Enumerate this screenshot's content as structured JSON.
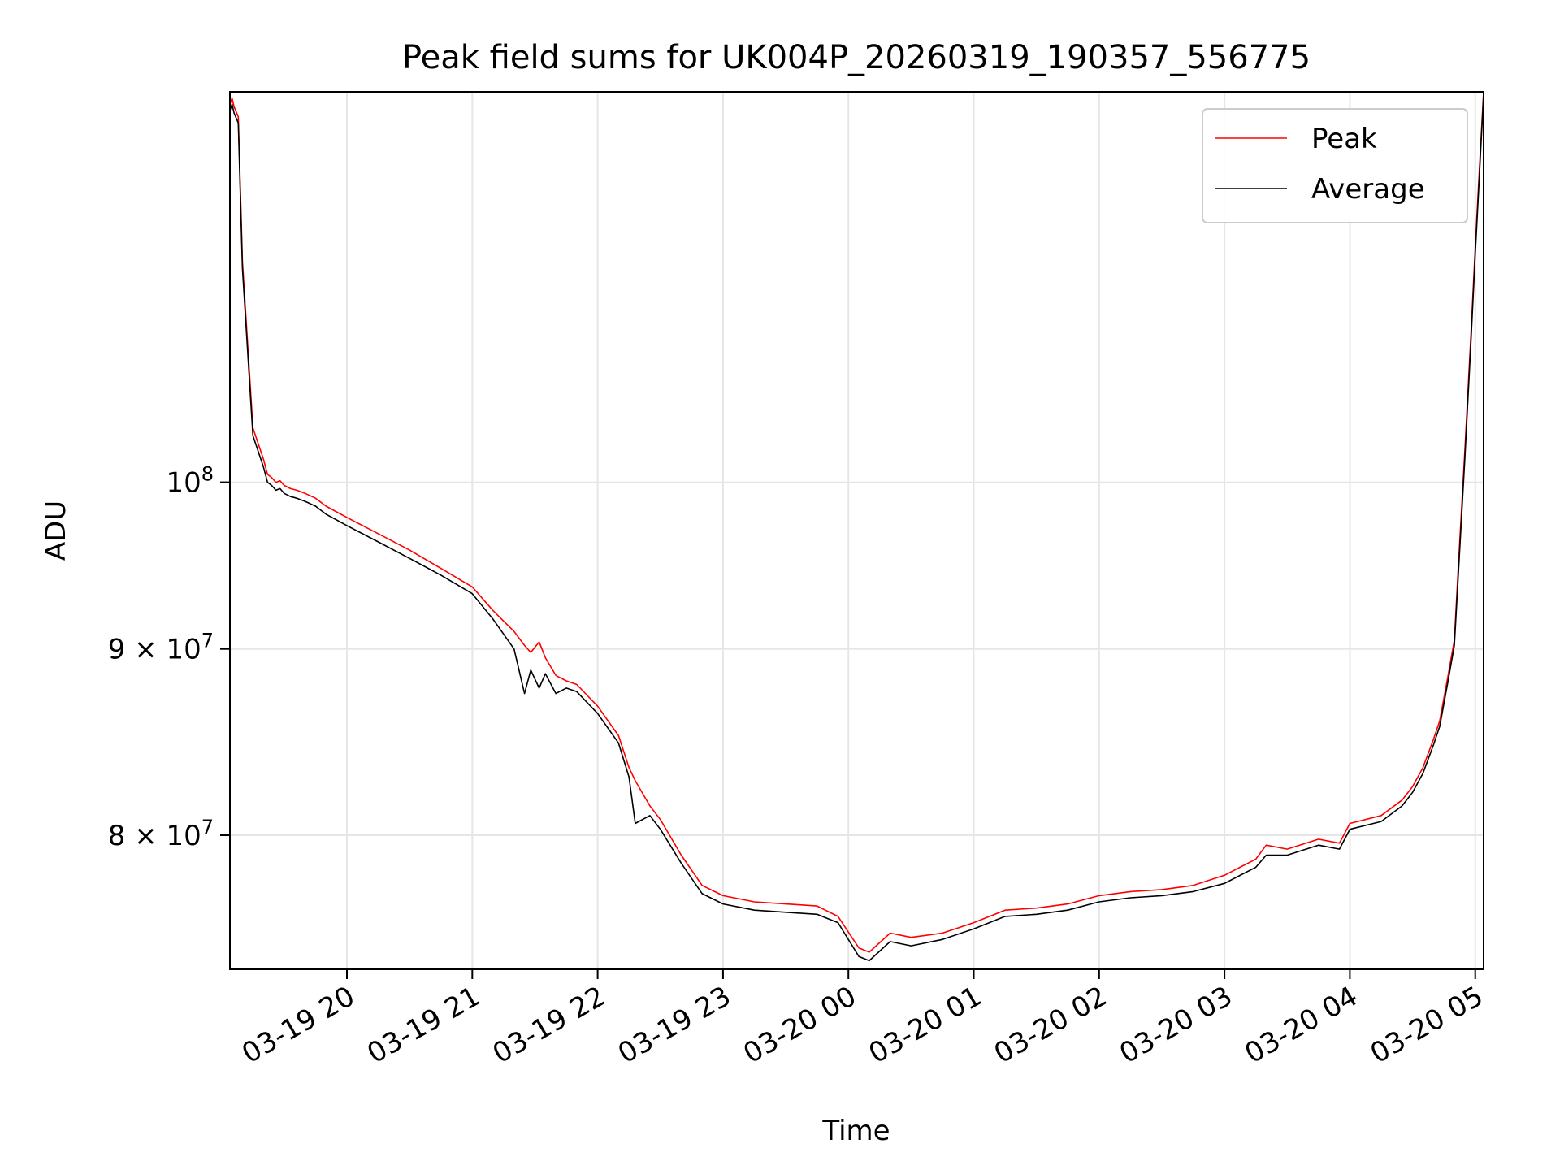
{
  "chart_data": {
    "type": "line",
    "title": "Peak field sums for UK004P_20260319_190357_556775",
    "xlabel": "Time",
    "ylabel": "ADU",
    "y_scale": "log",
    "ylim": [
      73500000,
      128000000
    ],
    "xlim": [
      "2026-03-19 19:04:00",
      "2026-03-20 05:04:00"
    ],
    "grid": true,
    "legend_position": "top-right",
    "x_ticks": [
      {
        "t": "2026-03-19 20:00",
        "label": "03-19 20"
      },
      {
        "t": "2026-03-19 21:00",
        "label": "03-19 21"
      },
      {
        "t": "2026-03-19 22:00",
        "label": "03-19 22"
      },
      {
        "t": "2026-03-19 23:00",
        "label": "03-19 23"
      },
      {
        "t": "2026-03-20 00:00",
        "label": "03-20 00"
      },
      {
        "t": "2026-03-20 01:00",
        "label": "03-20 01"
      },
      {
        "t": "2026-03-20 02:00",
        "label": "03-20 02"
      },
      {
        "t": "2026-03-20 03:00",
        "label": "03-20 03"
      },
      {
        "t": "2026-03-20 04:00",
        "label": "03-20 04"
      },
      {
        "t": "2026-03-20 05:00",
        "label": "03-20 05"
      }
    ],
    "y_ticks": [
      {
        "value": 100000000,
        "base": "10",
        "exp": "8"
      },
      {
        "value": 90000000,
        "base": "9 × 10",
        "exp": "7"
      },
      {
        "value": 80000000,
        "base": "8 × 10",
        "exp": "7"
      }
    ],
    "series": [
      {
        "name": "Peak",
        "color": "#ff0000",
        "x": [
          "2026-03-19 19:04",
          "2026-03-19 19:05",
          "2026-03-19 19:06",
          "2026-03-19 19:08",
          "2026-03-19 19:10",
          "2026-03-19 19:15",
          "2026-03-19 19:20",
          "2026-03-19 19:22",
          "2026-03-19 19:24",
          "2026-03-19 19:26",
          "2026-03-19 19:28",
          "2026-03-19 19:30",
          "2026-03-19 19:33",
          "2026-03-19 19:36",
          "2026-03-19 19:40",
          "2026-03-19 19:45",
          "2026-03-19 19:50",
          "2026-03-19 20:00",
          "2026-03-19 20:15",
          "2026-03-19 20:30",
          "2026-03-19 20:45",
          "2026-03-19 21:00",
          "2026-03-19 21:10",
          "2026-03-19 21:20",
          "2026-03-19 21:25",
          "2026-03-19 21:28",
          "2026-03-19 21:32",
          "2026-03-19 21:35",
          "2026-03-19 21:40",
          "2026-03-19 21:45",
          "2026-03-19 21:50",
          "2026-03-19 22:00",
          "2026-03-19 22:10",
          "2026-03-19 22:15",
          "2026-03-19 22:18",
          "2026-03-19 22:25",
          "2026-03-19 22:30",
          "2026-03-19 22:40",
          "2026-03-19 22:50",
          "2026-03-19 23:00",
          "2026-03-19 23:15",
          "2026-03-19 23:30",
          "2026-03-19 23:45",
          "2026-03-19 23:55",
          "2026-03-20 00:05",
          "2026-03-20 00:10",
          "2026-03-20 00:20",
          "2026-03-20 00:30",
          "2026-03-20 00:45",
          "2026-03-20 01:00",
          "2026-03-20 01:15",
          "2026-03-20 01:30",
          "2026-03-20 01:45",
          "2026-03-20 02:00",
          "2026-03-20 02:15",
          "2026-03-20 02:30",
          "2026-03-20 02:45",
          "2026-03-20 03:00",
          "2026-03-20 03:15",
          "2026-03-20 03:20",
          "2026-03-20 03:30",
          "2026-03-20 03:45",
          "2026-03-20 03:55",
          "2026-03-20 04:00",
          "2026-03-20 04:15",
          "2026-03-20 04:25",
          "2026-03-20 04:30",
          "2026-03-20 04:35",
          "2026-03-20 04:40",
          "2026-03-20 04:43",
          "2026-03-20 04:47",
          "2026-03-20 04:50",
          "2026-03-20 04:52",
          "2026-03-20 04:55",
          "2026-03-20 04:58",
          "2026-03-20 05:00",
          "2026-03-20 05:02",
          "2026-03-20 05:04"
        ],
        "y": [
          127000000,
          127500000,
          126800000,
          126000000,
          115000000,
          103500000,
          101500000,
          100500000,
          100300000,
          100000000,
          100100000,
          99800000,
          99600000,
          99500000,
          99300000,
          99000000,
          98500000,
          97800000,
          96800000,
          95800000,
          94700000,
          93600000,
          92200000,
          91000000,
          90200000,
          89800000,
          90400000,
          89500000,
          88500000,
          88200000,
          88000000,
          86800000,
          85200000,
          83500000,
          82800000,
          81500000,
          80800000,
          79000000,
          77500000,
          77000000,
          76700000,
          76600000,
          76500000,
          76000000,
          74500000,
          74300000,
          75200000,
          75000000,
          75200000,
          75700000,
          76300000,
          76400000,
          76600000,
          77000000,
          77200000,
          77300000,
          77500000,
          78000000,
          78800000,
          79500000,
          79300000,
          79800000,
          79600000,
          80600000,
          81000000,
          81800000,
          82500000,
          83500000,
          85000000,
          86000000,
          88500000,
          90500000,
          95000000,
          102000000,
          110000000,
          116000000,
          122000000,
          128000000
        ]
      },
      {
        "name": "Average",
        "color": "#000000",
        "x": [
          "2026-03-19 19:04",
          "2026-03-19 19:05",
          "2026-03-19 19:06",
          "2026-03-19 19:08",
          "2026-03-19 19:10",
          "2026-03-19 19:15",
          "2026-03-19 19:20",
          "2026-03-19 19:22",
          "2026-03-19 19:24",
          "2026-03-19 19:26",
          "2026-03-19 19:28",
          "2026-03-19 19:30",
          "2026-03-19 19:33",
          "2026-03-19 19:36",
          "2026-03-19 19:40",
          "2026-03-19 19:45",
          "2026-03-19 19:50",
          "2026-03-19 20:00",
          "2026-03-19 20:15",
          "2026-03-19 20:30",
          "2026-03-19 20:45",
          "2026-03-19 21:00",
          "2026-03-19 21:10",
          "2026-03-19 21:20",
          "2026-03-19 21:25",
          "2026-03-19 21:28",
          "2026-03-19 21:32",
          "2026-03-19 21:35",
          "2026-03-19 21:40",
          "2026-03-19 21:45",
          "2026-03-19 21:50",
          "2026-03-19 22:00",
          "2026-03-19 22:10",
          "2026-03-19 22:15",
          "2026-03-19 22:18",
          "2026-03-19 22:25",
          "2026-03-19 22:30",
          "2026-03-19 22:40",
          "2026-03-19 22:50",
          "2026-03-19 23:00",
          "2026-03-19 23:15",
          "2026-03-19 23:30",
          "2026-03-19 23:45",
          "2026-03-19 23:55",
          "2026-03-20 00:05",
          "2026-03-20 00:10",
          "2026-03-20 00:20",
          "2026-03-20 00:30",
          "2026-03-20 00:45",
          "2026-03-20 01:00",
          "2026-03-20 01:15",
          "2026-03-20 01:30",
          "2026-03-20 01:45",
          "2026-03-20 02:00",
          "2026-03-20 02:15",
          "2026-03-20 02:30",
          "2026-03-20 02:45",
          "2026-03-20 03:00",
          "2026-03-20 03:15",
          "2026-03-20 03:20",
          "2026-03-20 03:30",
          "2026-03-20 03:45",
          "2026-03-20 03:55",
          "2026-03-20 04:00",
          "2026-03-20 04:15",
          "2026-03-20 04:25",
          "2026-03-20 04:30",
          "2026-03-20 04:35",
          "2026-03-20 04:40",
          "2026-03-20 04:43",
          "2026-03-20 04:47",
          "2026-03-20 04:50",
          "2026-03-20 04:52",
          "2026-03-20 04:55",
          "2026-03-20 04:58",
          "2026-03-20 05:00",
          "2026-03-20 05:02",
          "2026-03-20 05:04"
        ],
        "y": [
          126500000,
          127000000,
          126300000,
          125500000,
          114500000,
          103000000,
          101000000,
          100000000,
          99800000,
          99500000,
          99600000,
          99300000,
          99100000,
          99000000,
          98800000,
          98500000,
          98000000,
          97300000,
          96300000,
          95300000,
          94300000,
          93200000,
          91700000,
          90000000,
          87500000,
          88800000,
          87800000,
          88600000,
          87500000,
          87800000,
          87600000,
          86400000,
          84800000,
          83000000,
          80600000,
          81000000,
          80300000,
          78600000,
          77100000,
          76600000,
          76300000,
          76200000,
          76100000,
          75700000,
          74100000,
          73900000,
          74800000,
          74600000,
          74900000,
          75400000,
          76000000,
          76100000,
          76300000,
          76700000,
          76900000,
          77000000,
          77200000,
          77600000,
          78400000,
          79000000,
          79000000,
          79500000,
          79300000,
          80300000,
          80700000,
          81500000,
          82200000,
          83200000,
          84700000,
          85700000,
          88200000,
          90200000,
          94500000,
          101500000,
          109500000,
          115500000,
          121500000,
          127800000
        ]
      }
    ]
  }
}
